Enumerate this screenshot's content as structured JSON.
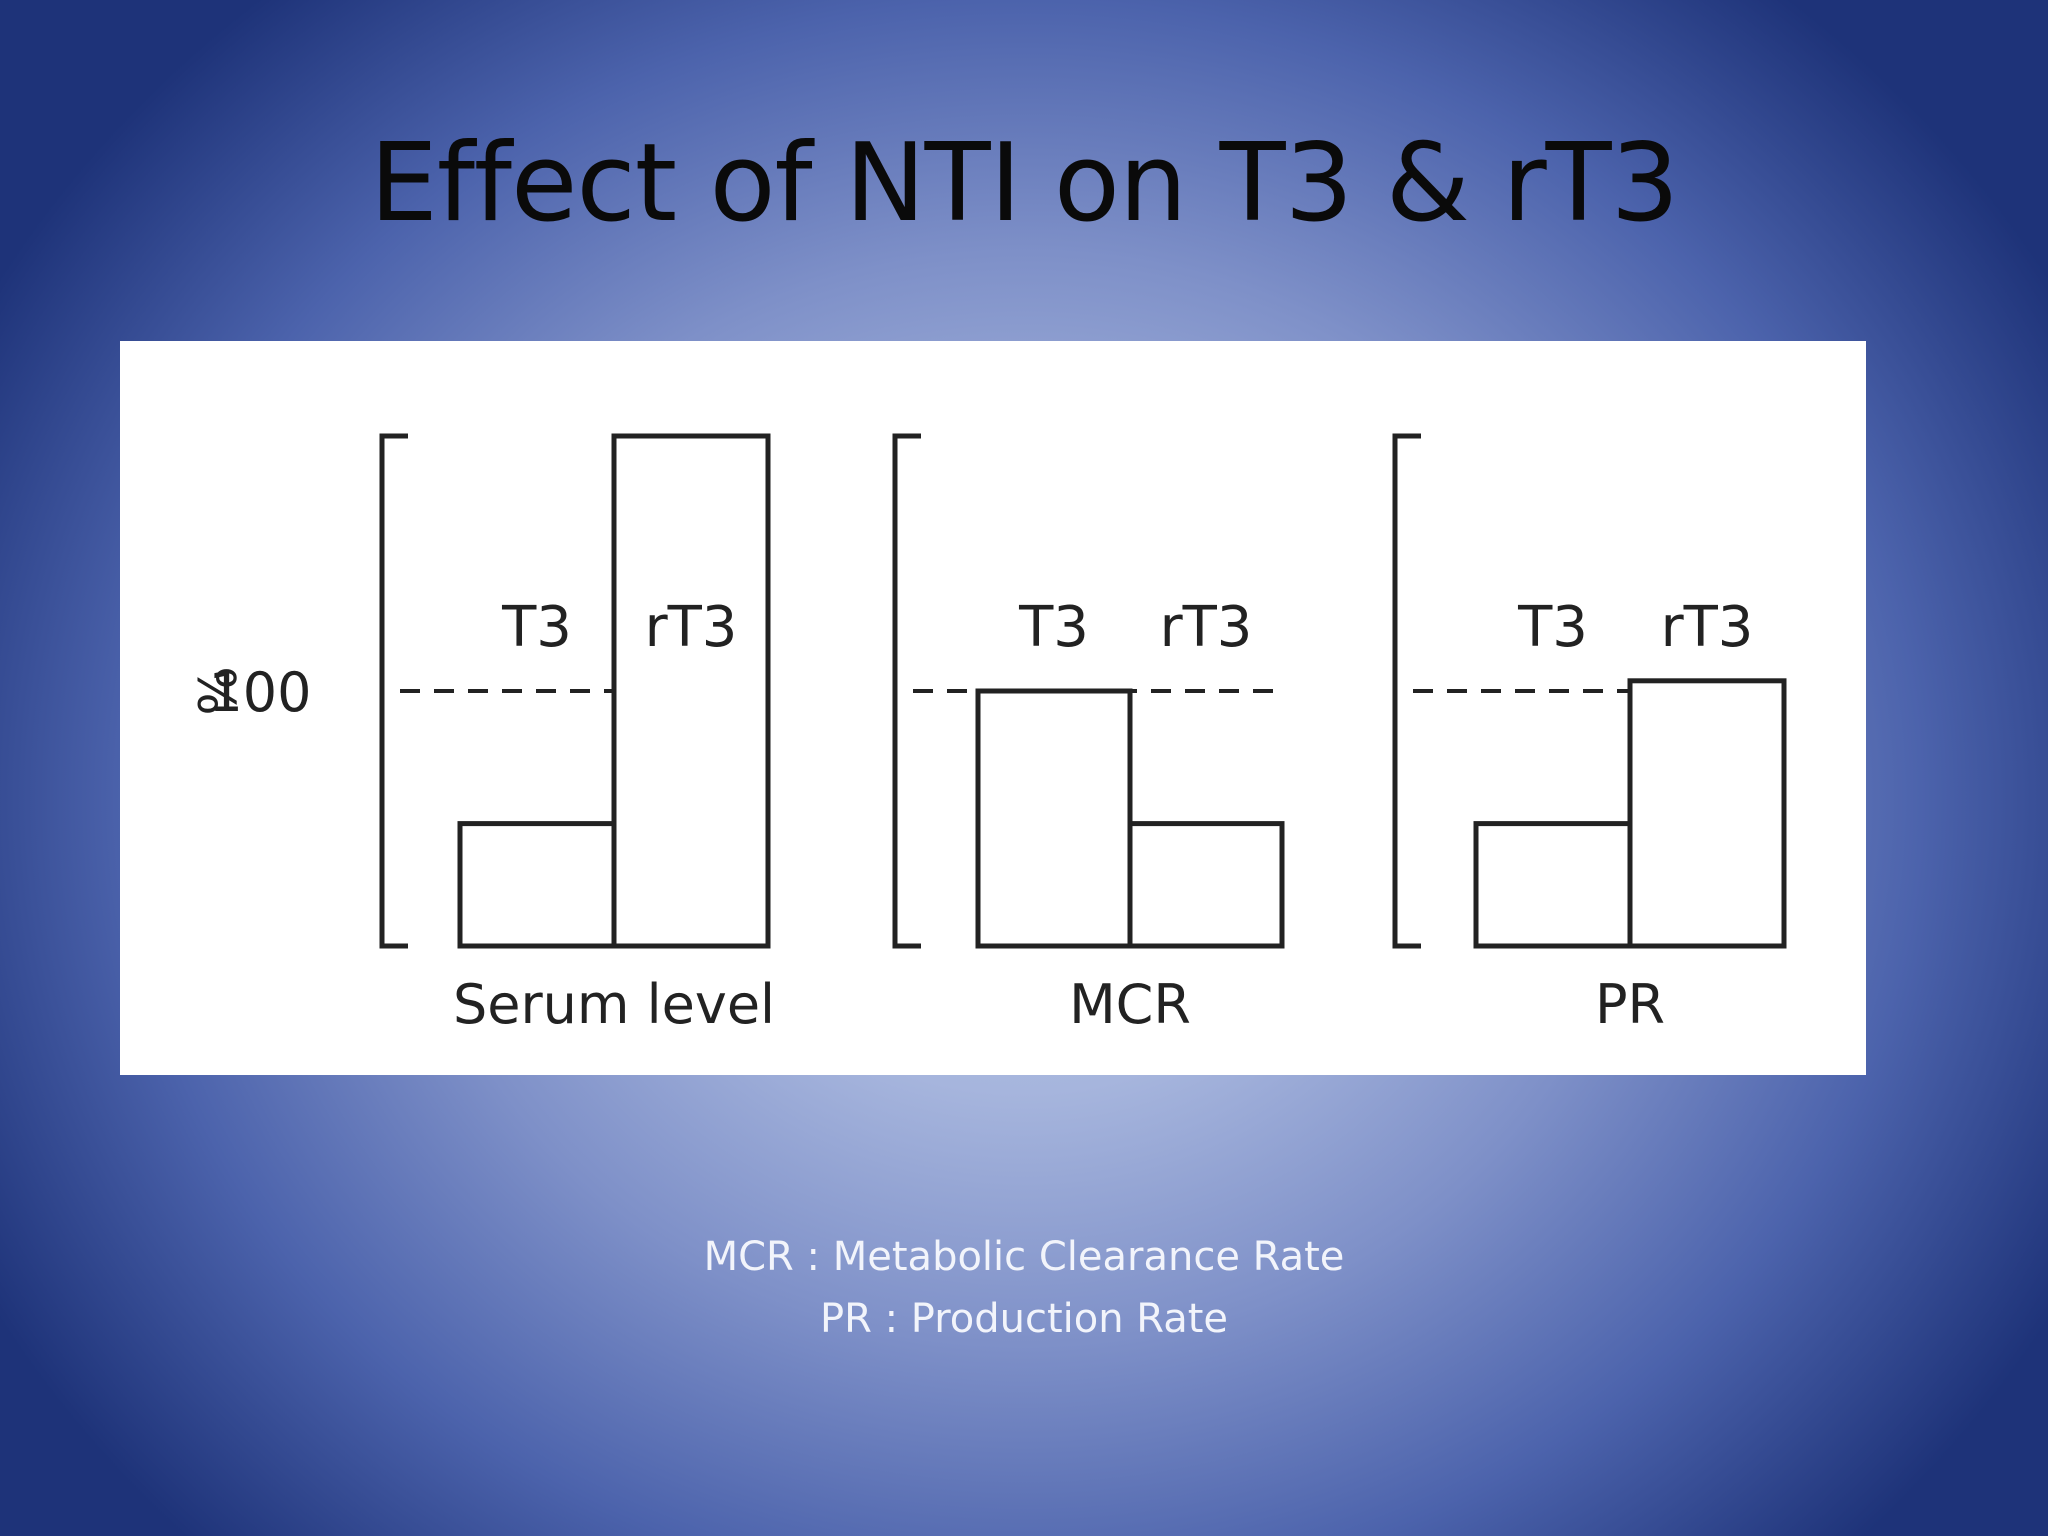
{
  "slide": {
    "title": "Effect of NTI on T3 & rT3",
    "footnotes": [
      "MCR : Metabolic Clearance Rate",
      "PR : Production Rate"
    ]
  },
  "chart_data": [
    {
      "type": "bar",
      "title": "Serum level",
      "ylabel": "%",
      "yticks": [
        "100"
      ],
      "reference_line": 100,
      "categories": [
        "T3",
        "rT3"
      ],
      "values": [
        48,
        200
      ],
      "ylim": [
        0,
        200
      ]
    },
    {
      "type": "bar",
      "title": "MCR",
      "ylabel": "",
      "reference_line": 100,
      "categories": [
        "T3",
        "rT3"
      ],
      "values": [
        100,
        48
      ],
      "ylim": [
        0,
        200
      ]
    },
    {
      "type": "bar",
      "title": "PR",
      "ylabel": "",
      "reference_line": 100,
      "categories": [
        "T3",
        "rT3"
      ],
      "values": [
        48,
        104
      ],
      "ylim": [
        0,
        200
      ]
    }
  ]
}
